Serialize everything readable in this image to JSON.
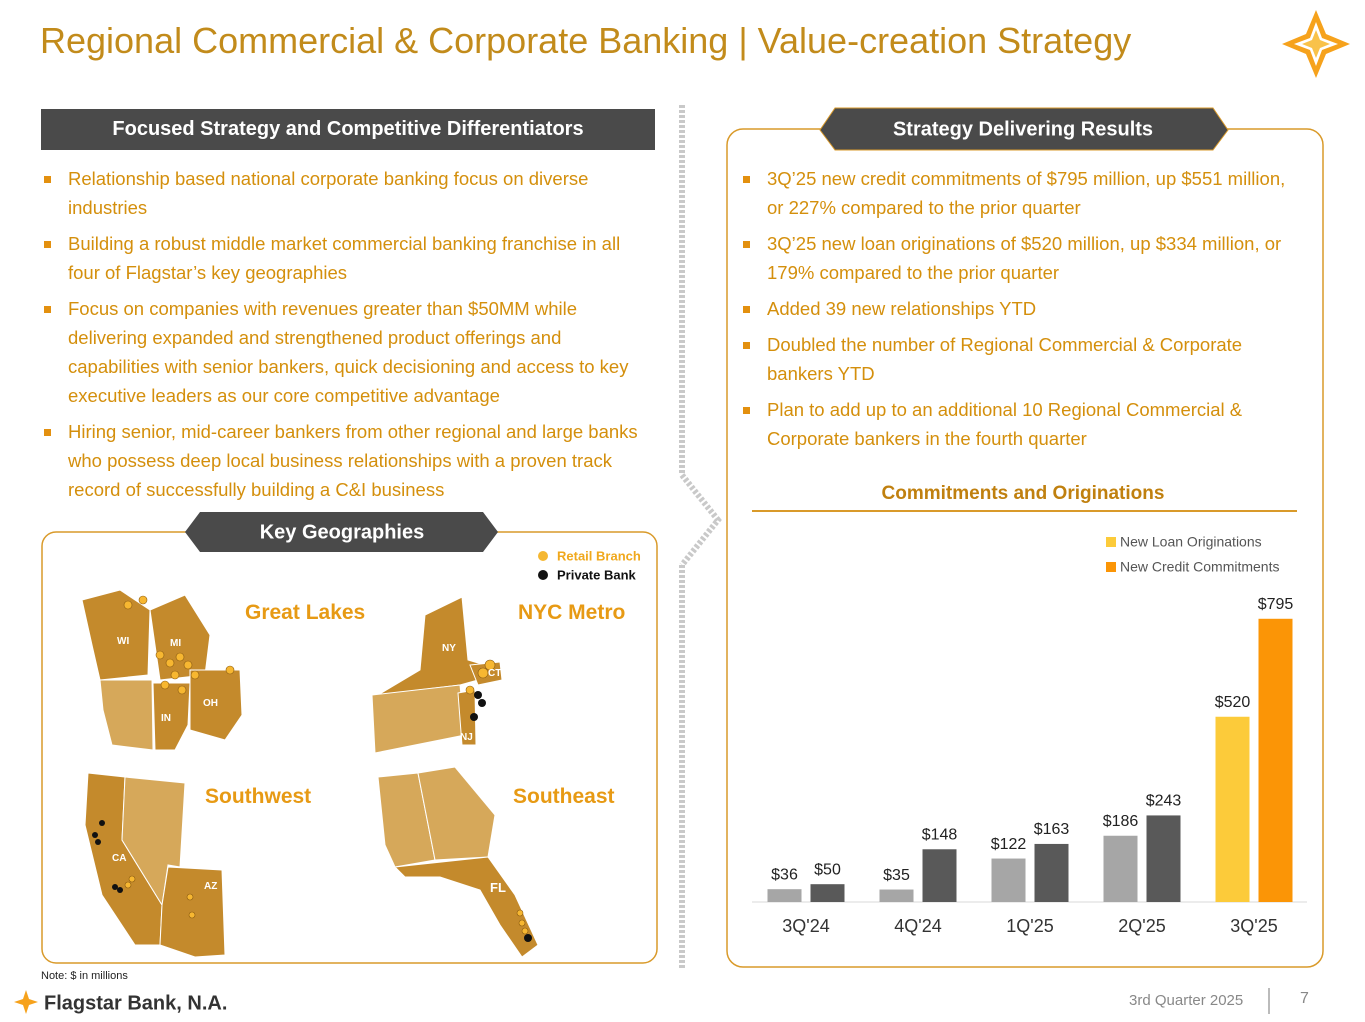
{
  "header": {
    "title": "Regional Commercial & Corporate Banking | Value-creation Strategy"
  },
  "left": {
    "heading": "Focused Strategy and Competitive Differentiators",
    "bullets": [
      "Relationship based national corporate banking focus on diverse industries",
      "Building a robust middle market commercial banking franchise in all four of Flagstar’s key geographies",
      "Focus on companies with revenues greater than $50MM while delivering expanded and strengthened product offerings and capabilities with senior bankers, quick decisioning and access to key executive leaders as our core competitive advantage",
      "Hiring senior, mid-career bankers from other regional and large banks who possess deep local business relationships with a proven track record of successfully building a C&I business"
    ]
  },
  "geographies": {
    "heading": "Key Geographies",
    "legend": [
      "Retail Branch",
      "Private Bank"
    ],
    "regions": [
      "Great Lakes",
      "NYC Metro",
      "Southwest",
      "Southeast"
    ],
    "states": [
      "WI",
      "MI",
      "IN",
      "OH",
      "NY",
      "CT",
      "NJ",
      "CA",
      "AZ",
      "FL"
    ]
  },
  "right": {
    "heading": "Strategy Delivering Results",
    "bullets": [
      "3Q’25 new credit commitments of $795 million, up $551 million, or 227% compared to the prior quarter",
      " 3Q’25 new loan originations of $520 million, up $334 million, or 179% compared to the prior quarter",
      "Added 39 new relationships YTD",
      "Doubled the number of Regional Commercial & Corporate bankers YTD",
      "Plan to add up to an additional 10 Regional Commercial & Corporate bankers in the fourth quarter"
    ]
  },
  "chart_data": {
    "type": "bar",
    "title": "Commitments and Originations",
    "categories": [
      "3Q'24",
      "4Q'24",
      "1Q'25",
      "2Q'25",
      "3Q'25"
    ],
    "series": [
      {
        "name": "New Loan Originations",
        "color": "#fccb3a",
        "bar_colors": [
          "#a6a6a6",
          "#a6a6a6",
          "#a6a6a6",
          "#a6a6a6",
          "#fccb3a"
        ],
        "values": [
          36,
          35,
          122,
          186,
          520
        ],
        "value_labels": [
          "$36",
          "$35",
          "$122",
          "$186",
          "$520"
        ]
      },
      {
        "name": "New Credit Commitments",
        "color": "#fb9506",
        "bar_colors": [
          "#595959",
          "#595959",
          "#595959",
          "#595959",
          "#fb9506"
        ],
        "values": [
          50,
          148,
          163,
          243,
          795
        ],
        "value_labels": [
          "$50",
          "$148",
          "$163",
          "$243",
          "$795"
        ]
      }
    ],
    "ylim": [
      0,
      800
    ]
  },
  "note": "Note: $ in millions",
  "footer": {
    "company": "Flagstar Bank, N.A.",
    "period": "3rd Quarter 2025",
    "page": "7"
  }
}
